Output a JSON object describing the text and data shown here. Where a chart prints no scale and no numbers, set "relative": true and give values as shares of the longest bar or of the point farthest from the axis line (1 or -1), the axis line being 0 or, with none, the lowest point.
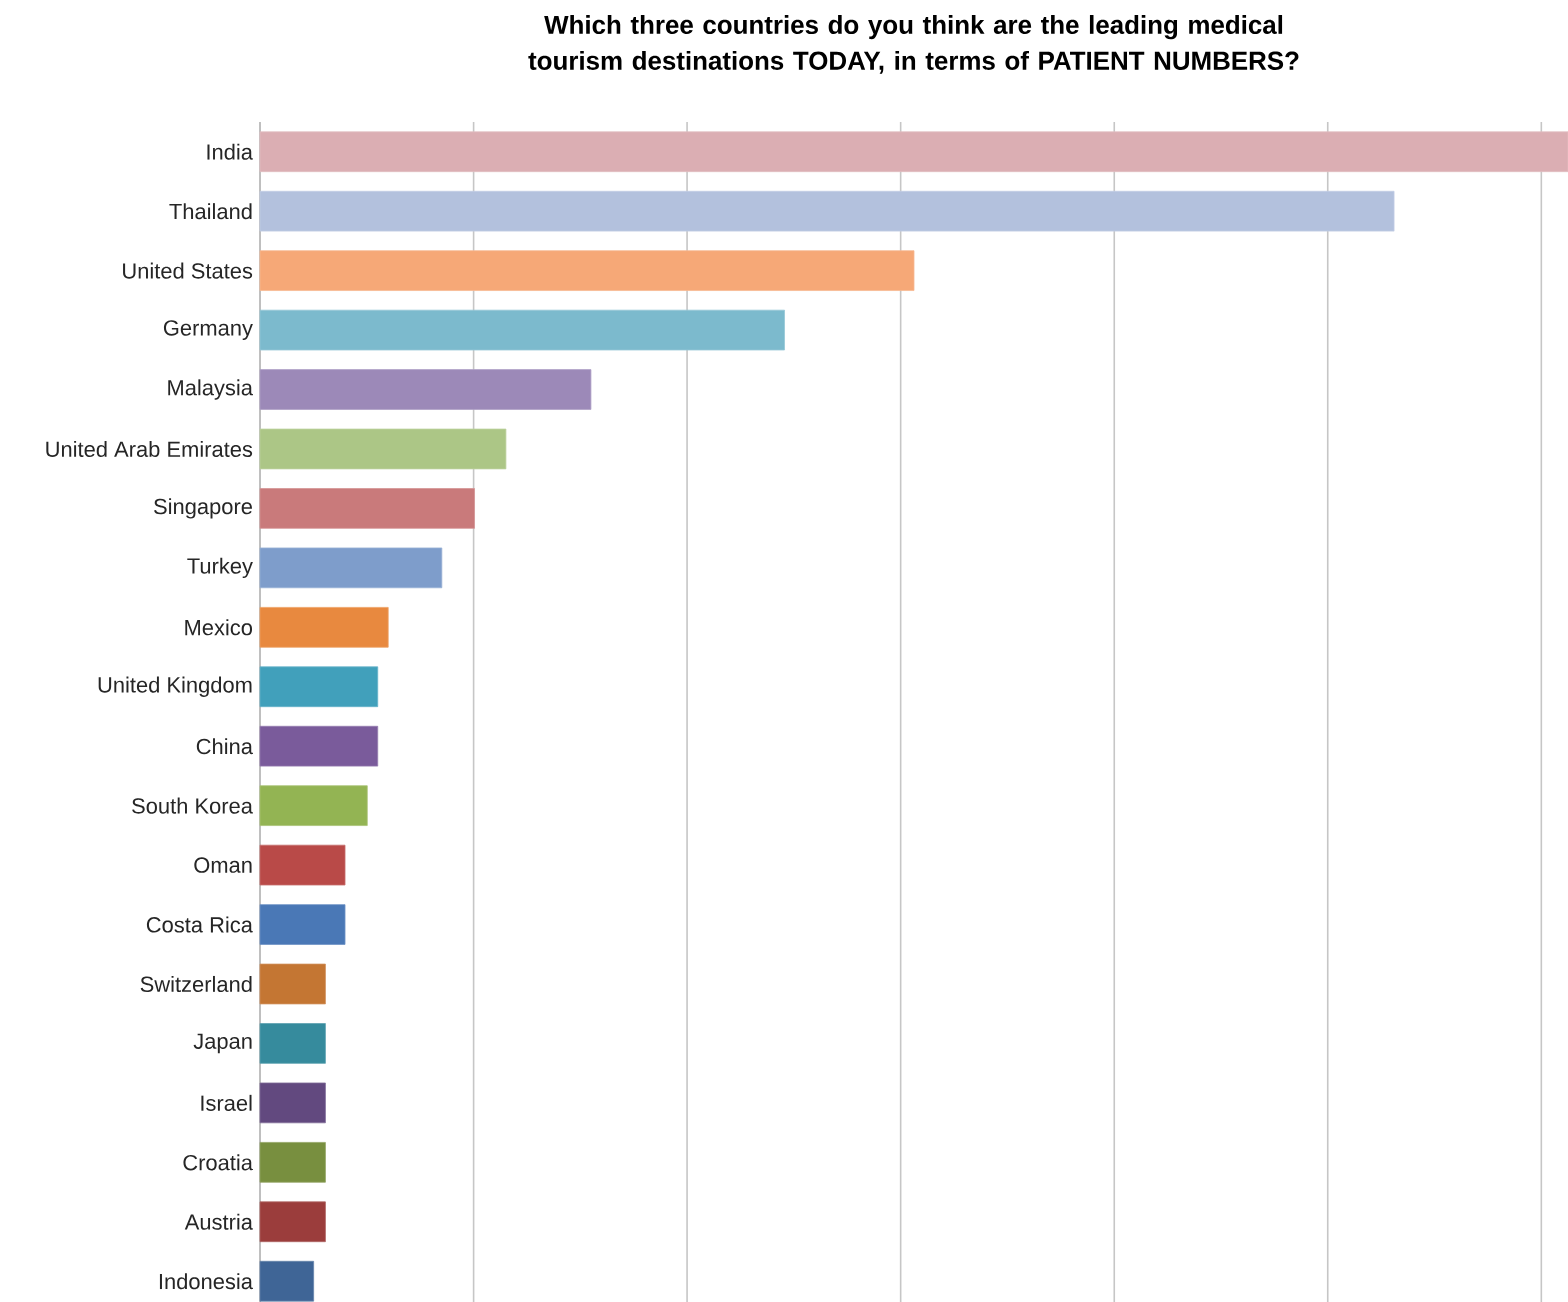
{
  "chart_data": {
    "type": "bar",
    "orientation": "horizontal",
    "relative": true,
    "grid": "x",
    "title": "Which three countries do you think are the leading medical tourism destinations TODAY, in terms of PATIENT NUMBERS?",
    "categories": [
      "India",
      "Thailand",
      "United States",
      "Germany",
      "Malaysia",
      "United Arab Emirates",
      "Singapore",
      "Turkey",
      "Mexico",
      "United Kingdom",
      "China",
      "South Korea",
      "Oman",
      "Costa Rica",
      "Switzerland",
      "Japan",
      "Israel",
      "Croatia",
      "Austria",
      "Indonesia"
    ],
    "values": [
      1,
      0.867,
      0.5,
      0.401,
      0.253,
      0.188,
      0.164,
      0.139,
      0.098,
      0.09,
      0.09,
      0.082,
      0.065,
      0.065,
      0.05,
      0.05,
      0.05,
      0.05,
      0.05,
      0.041
    ],
    "colors": [
      "#dbaeb3",
      "#b3c1dd",
      "#f6a877",
      "#7cbacd",
      "#9c89b8",
      "#acc686",
      "#c97a7b",
      "#7e9dcb",
      "#e8893f",
      "#41a0bb",
      "#7a5b9b",
      "#93b453",
      "#b94a48",
      "#4a78b6",
      "#c47633",
      "#368b9d",
      "#62497f",
      "#788f3f",
      "#9b3d3c",
      "#3f6596"
    ]
  }
}
